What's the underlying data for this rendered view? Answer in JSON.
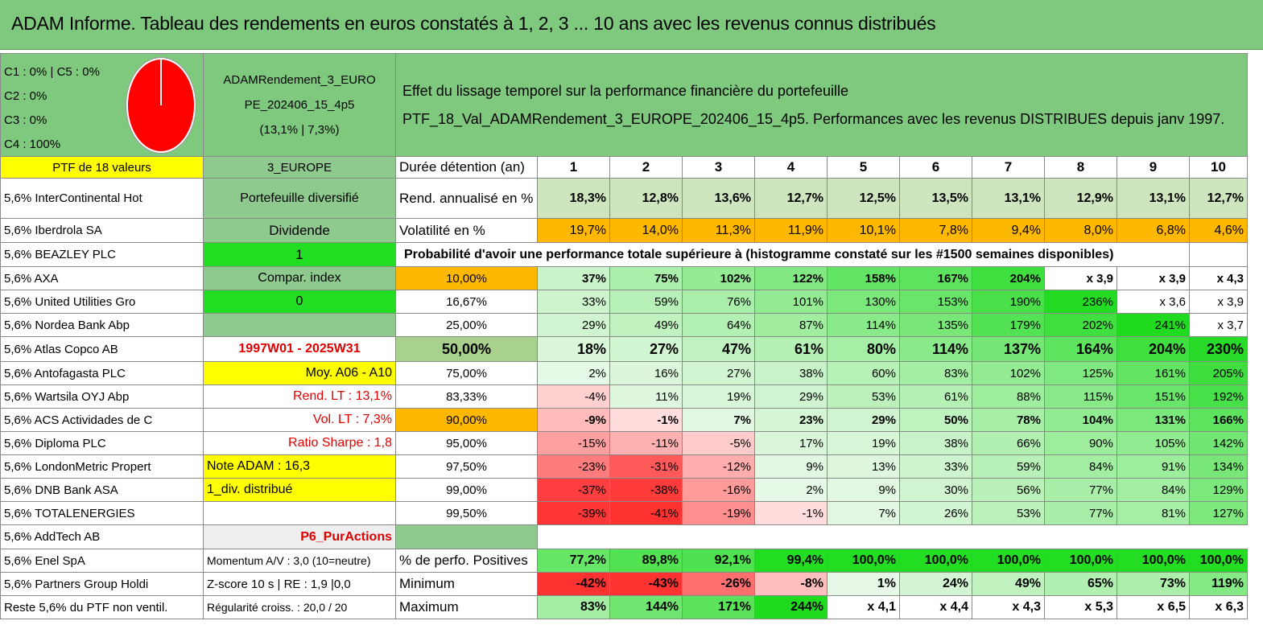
{
  "title": "ADAM Informe. Tableau des rendements en euros constatés à 1, 2, 3 ... 10 ans avec les revenus connus distribués",
  "composition": {
    "line1": "C1 : 0% | C5 : 0%",
    "line2": "C2 : 0%",
    "line3": "C3 : 0%",
    "line4": "C4 : 100%"
  },
  "portfolio": {
    "name_line1": "ADAMRendement_3_EURO",
    "name_line2": "PE_202406_15_4p5",
    "name_line3": "(13,1% | 7,3%)"
  },
  "description": {
    "line1": "Effet du lissage temporel sur la performance financière du portefeuille",
    "line2": "PTF_18_Val_ADAMRendement_3_EUROPE_202406_15_4p5. Performances avec les revenus DISTRIBUES depuis janv 1997."
  },
  "ptf_header": "PTF de 18 valeurs",
  "region": "3_EUROPE",
  "duration_label": "Durée détention (an)",
  "years": [
    "1",
    "2",
    "3",
    "4",
    "5",
    "6",
    "7",
    "8",
    "9",
    "10"
  ],
  "holdings": [
    "5,6% InterContinental Hot",
    "5,6% Iberdrola SA",
    "5,6% BEAZLEY PLC",
    "5,6% AXA",
    "5,6% United Utilities Gro",
    "5,6% Nordea Bank Abp",
    "5,6% Atlas Copco AB",
    "5,6% Antofagasta PLC",
    "5,6% Wartsila OYJ Abp",
    "5,6% ACS Actividades de C",
    "5,6% Diploma PLC",
    "5,6% LondonMetric Propert",
    "5,6% DNB Bank ASA",
    "5,6% TOTALENERGIES",
    "5,6% AddTech AB",
    "5,6% Enel SpA",
    "5,6% Partners Group Holdi",
    "Reste 5,6% du PTF non ventil."
  ],
  "info": {
    "diversified": "Portefeuille diversifié",
    "dividend": "Dividende",
    "one": "1",
    "compar_index": "Compar. index",
    "zero": "0",
    "period": "1997W01 - 2025W31",
    "avg": "Moy. A06 - A10",
    "rend_lt": "Rend. LT : 13,1%",
    "vol_lt": "Vol. LT : 7,3%",
    "sharpe": "Ratio Sharpe : 1,8",
    "note": "Note ADAM : 16,3",
    "div": "1_div. distribué",
    "p6": "P6_PurActions",
    "momentum": "Momentum A/V : 3,0 (10=neutre)",
    "zscore": "Z-score 10 s | RE : 1,9 |0,0",
    "regularity": "Régularité croiss. : 20,0 / 20"
  },
  "rend": {
    "label": "Rend. annualisé en %",
    "values": [
      "18,3%",
      "12,8%",
      "13,6%",
      "12,7%",
      "12,5%",
      "13,5%",
      "13,1%",
      "12,9%",
      "13,1%",
      "12,7%"
    ]
  },
  "vol": {
    "label": "Volatilité en %",
    "values": [
      "19,7%",
      "14,0%",
      "11,3%",
      "11,9%",
      "10,1%",
      "7,8%",
      "9,4%",
      "8,0%",
      "6,8%",
      "4,6%"
    ]
  },
  "prob_header": "Probabilité d'avoir une performance totale supérieure à (histogramme constaté sur les #1500 semaines disponibles)",
  "prob_rows": [
    {
      "p": "10,00%",
      "values": [
        "37%",
        "75%",
        "102%",
        "122%",
        "158%",
        "167%",
        "204%",
        "x 3,9",
        "x 3,9",
        "x 4,3"
      ]
    },
    {
      "p": "16,67%",
      "values": [
        "33%",
        "59%",
        "76%",
        "101%",
        "130%",
        "153%",
        "190%",
        "236%",
        "x 3,6",
        "x 3,9"
      ]
    },
    {
      "p": "25,00%",
      "values": [
        "29%",
        "49%",
        "64%",
        "87%",
        "114%",
        "135%",
        "179%",
        "202%",
        "241%",
        "x 3,7"
      ]
    },
    {
      "p": "50,00%",
      "values": [
        "18%",
        "27%",
        "47%",
        "61%",
        "80%",
        "114%",
        "137%",
        "164%",
        "204%",
        "230%"
      ]
    },
    {
      "p": "75,00%",
      "values": [
        "2%",
        "16%",
        "27%",
        "38%",
        "60%",
        "83%",
        "102%",
        "125%",
        "161%",
        "205%"
      ]
    },
    {
      "p": "83,33%",
      "values": [
        "-4%",
        "11%",
        "19%",
        "29%",
        "53%",
        "61%",
        "88%",
        "115%",
        "151%",
        "192%"
      ]
    },
    {
      "p": "90,00%",
      "values": [
        "-9%",
        "-1%",
        "7%",
        "23%",
        "29%",
        "50%",
        "78%",
        "104%",
        "131%",
        "166%"
      ]
    },
    {
      "p": "95,00%",
      "values": [
        "-15%",
        "-11%",
        "-5%",
        "17%",
        "19%",
        "38%",
        "66%",
        "90%",
        "105%",
        "142%"
      ]
    },
    {
      "p": "97,50%",
      "values": [
        "-23%",
        "-31%",
        "-12%",
        "9%",
        "13%",
        "33%",
        "59%",
        "84%",
        "91%",
        "134%"
      ]
    },
    {
      "p": "99,00%",
      "values": [
        "-37%",
        "-38%",
        "-16%",
        "2%",
        "9%",
        "30%",
        "56%",
        "77%",
        "84%",
        "129%"
      ]
    },
    {
      "p": "99,50%",
      "values": [
        "-39%",
        "-41%",
        "-19%",
        "-1%",
        "7%",
        "26%",
        "53%",
        "77%",
        "81%",
        "127%"
      ]
    }
  ],
  "positive": {
    "label": "% de perfo. Positives",
    "values": [
      "77,2%",
      "89,8%",
      "92,1%",
      "99,4%",
      "100,0%",
      "100,0%",
      "100,0%",
      "100,0%",
      "100,0%",
      "100,0%"
    ]
  },
  "minimum": {
    "label": "Minimum",
    "values": [
      "-42%",
      "-43%",
      "-26%",
      "-8%",
      "1%",
      "24%",
      "49%",
      "65%",
      "73%",
      "119%"
    ]
  },
  "maximum": {
    "label": "Maximum",
    "values": [
      "83%",
      "144%",
      "171%",
      "244%",
      "x 4,1",
      "x 4,4",
      "x 4,3",
      "x 5,3",
      "x 6,5",
      "x 6,3"
    ]
  }
}
